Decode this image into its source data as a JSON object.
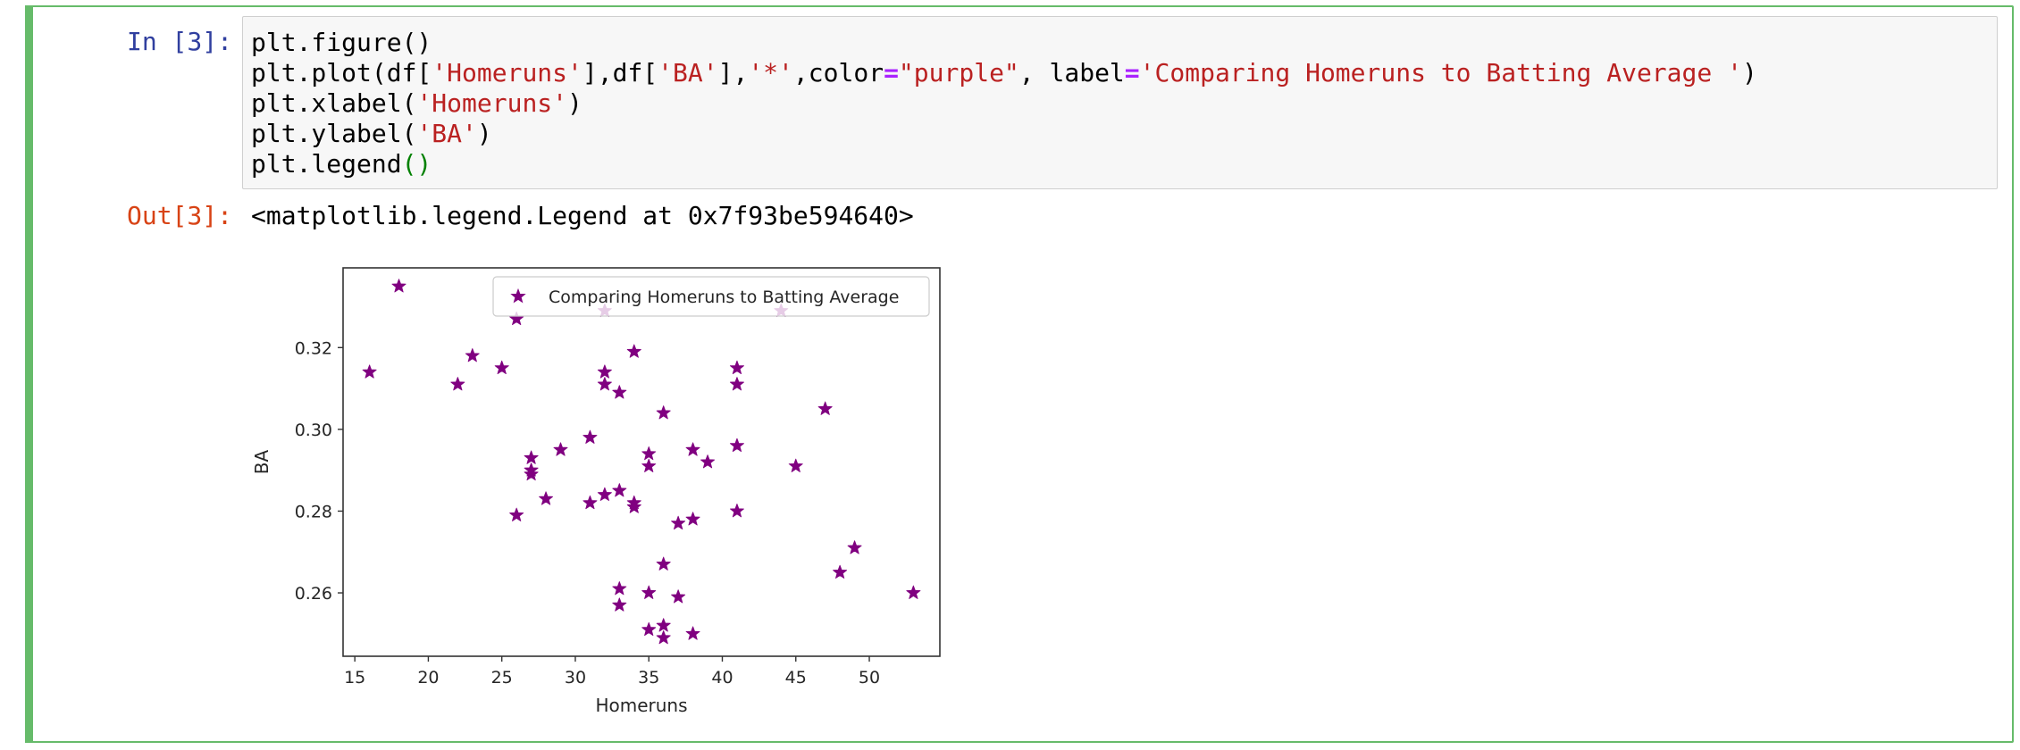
{
  "prompts": {
    "input": "In [3]:",
    "output": "Out[3]:"
  },
  "code": [
    [
      {
        "t": "plt.figure()",
        "c": ""
      }
    ],
    [
      {
        "t": "plt.plot(df[",
        "c": ""
      },
      {
        "t": "'Homeruns'",
        "c": "s"
      },
      {
        "t": "],df[",
        "c": ""
      },
      {
        "t": "'BA'",
        "c": "s"
      },
      {
        "t": "],",
        "c": ""
      },
      {
        "t": "'*'",
        "c": "s"
      },
      {
        "t": ",color",
        "c": ""
      },
      {
        "t": "=",
        "c": "op"
      },
      {
        "t": "\"purple\"",
        "c": "s"
      },
      {
        "t": ", label",
        "c": ""
      },
      {
        "t": "=",
        "c": "op"
      },
      {
        "t": "'Comparing Homeruns to Batting Average '",
        "c": "s"
      },
      {
        "t": ")",
        "c": ""
      }
    ],
    [
      {
        "t": "plt.xlabel(",
        "c": ""
      },
      {
        "t": "'Homeruns'",
        "c": "s"
      },
      {
        "t": ")",
        "c": ""
      }
    ],
    [
      {
        "t": "plt.ylabel(",
        "c": ""
      },
      {
        "t": "'BA'",
        "c": "s"
      },
      {
        "t": ")",
        "c": ""
      }
    ],
    [
      {
        "t": "plt.legend",
        "c": ""
      },
      {
        "t": "()",
        "c": "par"
      }
    ]
  ],
  "output_text": "<matplotlib.legend.Legend at 0x7f93be594640>",
  "chart_data": {
    "type": "scatter",
    "marker": "star",
    "color": "#800080",
    "xlabel": "Homeruns",
    "ylabel": "BA",
    "xlim": [
      14.2,
      54.8
    ],
    "ylim": [
      0.2445,
      0.3395
    ],
    "xticks": [
      15,
      20,
      25,
      30,
      35,
      40,
      45,
      50
    ],
    "yticks": [
      0.26,
      0.28,
      0.3,
      0.32
    ],
    "ytick_labels": [
      "0.26",
      "0.28",
      "0.30",
      "0.32"
    ],
    "legend": {
      "label": "Comparing Homeruns to Batting Average",
      "position": "upper right"
    },
    "series": [
      {
        "name": "Comparing Homeruns to Batting Average",
        "points": [
          [
            16,
            0.314
          ],
          [
            18,
            0.335
          ],
          [
            22,
            0.311
          ],
          [
            23,
            0.318
          ],
          [
            25,
            0.315
          ],
          [
            26,
            0.327
          ],
          [
            26,
            0.279
          ],
          [
            27,
            0.293
          ],
          [
            27,
            0.29
          ],
          [
            27,
            0.289
          ],
          [
            28,
            0.283
          ],
          [
            29,
            0.295
          ],
          [
            31,
            0.298
          ],
          [
            31,
            0.282
          ],
          [
            32,
            0.329
          ],
          [
            32,
            0.314
          ],
          [
            32,
            0.311
          ],
          [
            32,
            0.284
          ],
          [
            33,
            0.309
          ],
          [
            33,
            0.285
          ],
          [
            33,
            0.261
          ],
          [
            33,
            0.257
          ],
          [
            34,
            0.319
          ],
          [
            34,
            0.282
          ],
          [
            34,
            0.281
          ],
          [
            35,
            0.294
          ],
          [
            35,
            0.291
          ],
          [
            35,
            0.26
          ],
          [
            35,
            0.251
          ],
          [
            36,
            0.304
          ],
          [
            36,
            0.267
          ],
          [
            36,
            0.252
          ],
          [
            36,
            0.249
          ],
          [
            37,
            0.277
          ],
          [
            37,
            0.259
          ],
          [
            38,
            0.295
          ],
          [
            38,
            0.278
          ],
          [
            38,
            0.25
          ],
          [
            39,
            0.292
          ],
          [
            41,
            0.315
          ],
          [
            41,
            0.311
          ],
          [
            41,
            0.296
          ],
          [
            41,
            0.28
          ],
          [
            44,
            0.329
          ],
          [
            45,
            0.291
          ],
          [
            47,
            0.305
          ],
          [
            48,
            0.265
          ],
          [
            49,
            0.271
          ],
          [
            53,
            0.26
          ]
        ]
      }
    ]
  }
}
